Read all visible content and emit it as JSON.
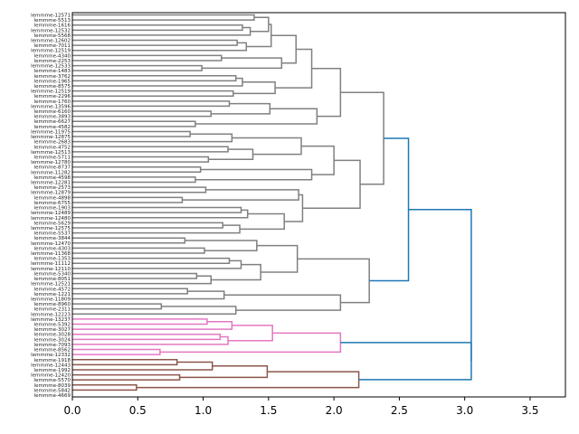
{
  "chart_data": {
    "type": "dendrogram",
    "orientation": "horizontal",
    "title": "",
    "xlabel": "",
    "ylabel": "",
    "xlim": [
      0,
      3.77
    ],
    "xticks": [
      0.0,
      0.5,
      1.0,
      1.5,
      2.0,
      2.5,
      3.0,
      3.5
    ],
    "xtick_labels": [
      "0.0",
      "0.5",
      "1.0",
      "1.5",
      "2.0",
      "2.5",
      "3.0",
      "3.5"
    ],
    "grid": false,
    "leaf_labels": [
      "lemmme-12571",
      "lemmme-5513",
      "lemmme-1616",
      "lemmme-12532",
      "lemmme-5568",
      "lemmme-12602",
      "lemmme-7011",
      "lemmme-12519",
      "lemmme-4340",
      "lemmme-2253",
      "lemmme-12533",
      "lemmme-1483",
      "lemmme-3762",
      "lemmme-1965",
      "lemmme-8575",
      "lemmme-12519",
      "lemmme-2296",
      "lemmme-1760",
      "lemmme-13596",
      "lemmme-6160",
      "lemmme-3893",
      "lemmme-6627",
      "lemmme-4582",
      "lemmme-11975",
      "lemmme-12875",
      "lemmme-2683",
      "lemmme-4752",
      "lemmme-12513",
      "lemmme-5711",
      "lemmme-12780",
      "lemmme-8737",
      "lemmme-11282",
      "lemmme-4598",
      "lemmme-12281",
      "lemmme-2573",
      "lemmme-12879",
      "lemmme-4898",
      "lemmme-6755",
      "lemmme-1903",
      "lemmme-12489",
      "lemmme-12480",
      "lemmme-5629",
      "lemmme-12575",
      "lemmme-5537",
      "lemmme-3844",
      "lemmme-12470",
      "lemmme-4303",
      "lemmme-11368",
      "lemmme-1353",
      "lemmme-11112",
      "lemmme-12110",
      "lemmme-5340",
      "lemmme-8051",
      "lemmme-12521",
      "lemmme-4572",
      "lemmme-1221",
      "lemmme-11809",
      "lemmme-8960",
      "lemmme-2311",
      "lemmme-12223",
      "lemmme-13237",
      "lemmme-5392",
      "lemmme-3027",
      "lemmme-3028",
      "lemmme-3024",
      "lemmme-7093",
      "lemmme-8562",
      "lemmme-12332",
      "lemmme-1918",
      "lemmme-12443",
      "lemmme-1992",
      "lemmme-12420",
      "lemmme-5570",
      "lemmme-8039",
      "lemmme-5842",
      "lemmme-4669"
    ],
    "merges": [
      {
        "left": 0,
        "right": 1,
        "height": 1.39,
        "color": "gray"
      },
      {
        "left": 2,
        "right": 3,
        "height": 1.3,
        "color": "gray"
      },
      {
        "left": "m1",
        "right": 4,
        "height": 1.36,
        "color": "gray"
      },
      {
        "left": "m0",
        "right": "m2",
        "height": 1.5,
        "color": "gray"
      },
      {
        "left": 5,
        "right": 6,
        "height": 1.26,
        "color": "gray"
      },
      {
        "left": "m4",
        "right": 7,
        "height": 1.33,
        "color": "gray"
      },
      {
        "left": "m3",
        "right": "m5",
        "height": 1.52,
        "color": "gray"
      },
      {
        "left": 8,
        "right": 9,
        "height": 1.14,
        "color": "gray"
      },
      {
        "left": 10,
        "right": 11,
        "height": 0.99,
        "color": "gray"
      },
      {
        "left": "m7",
        "right": "m8",
        "height": 1.6,
        "color": "gray"
      },
      {
        "left": "m6",
        "right": "m9",
        "height": 1.71,
        "color": "gray"
      },
      {
        "left": 12,
        "right": 13,
        "height": 1.25,
        "color": "gray"
      },
      {
        "left": "m11",
        "right": 14,
        "height": 1.3,
        "color": "gray"
      },
      {
        "left": 15,
        "right": 16,
        "height": 1.23,
        "color": "gray"
      },
      {
        "left": "m12",
        "right": "m13",
        "height": 1.55,
        "color": "gray"
      },
      {
        "left": "m10",
        "right": "m14",
        "height": 1.83,
        "color": "gray"
      },
      {
        "left": 17,
        "right": 18,
        "height": 1.2,
        "color": "gray"
      },
      {
        "left": 19,
        "right": 20,
        "height": 1.06,
        "color": "gray"
      },
      {
        "left": "m16",
        "right": "m17",
        "height": 1.51,
        "color": "gray"
      },
      {
        "left": 21,
        "right": 22,
        "height": 0.94,
        "color": "gray"
      },
      {
        "left": "m18",
        "right": "m19",
        "height": 1.87,
        "color": "gray"
      },
      {
        "left": "m15",
        "right": "m20",
        "height": 2.05,
        "color": "gray"
      },
      {
        "left": 23,
        "right": 24,
        "height": 0.9,
        "color": "gray"
      },
      {
        "left": "m22",
        "right": 25,
        "height": 1.22,
        "color": "gray"
      },
      {
        "left": 26,
        "right": 27,
        "height": 1.19,
        "color": "gray"
      },
      {
        "left": 28,
        "right": 29,
        "height": 1.04,
        "color": "gray"
      },
      {
        "left": "m24",
        "right": "m25",
        "height": 1.38,
        "color": "gray"
      },
      {
        "left": "m23",
        "right": "m26",
        "height": 1.75,
        "color": "gray"
      },
      {
        "left": 30,
        "right": 31,
        "height": 0.98,
        "color": "gray"
      },
      {
        "left": 32,
        "right": 33,
        "height": 0.94,
        "color": "gray"
      },
      {
        "left": "m28",
        "right": "m29",
        "height": 1.83,
        "color": "gray"
      },
      {
        "left": "m27",
        "right": "m30",
        "height": 2.0,
        "color": "gray"
      },
      {
        "left": 34,
        "right": 35,
        "height": 1.02,
        "color": "gray"
      },
      {
        "left": 36,
        "right": 37,
        "height": 0.84,
        "color": "gray"
      },
      {
        "left": "m32",
        "right": "m33",
        "height": 1.73,
        "color": "gray"
      },
      {
        "left": 38,
        "right": 39,
        "height": 1.29,
        "color": "gray"
      },
      {
        "left": "m35",
        "right": 40,
        "height": 1.34,
        "color": "gray"
      },
      {
        "left": 41,
        "right": 42,
        "height": 1.15,
        "color": "gray"
      },
      {
        "left": "m37",
        "right": 43,
        "height": 1.28,
        "color": "gray"
      },
      {
        "left": "m36",
        "right": "m38",
        "height": 1.62,
        "color": "gray"
      },
      {
        "left": "m34",
        "right": "m39",
        "height": 1.76,
        "color": "gray"
      },
      {
        "left": "m31",
        "right": "m40",
        "height": 2.2,
        "color": "gray"
      },
      {
        "left": "m21",
        "right": "m41",
        "height": 2.38,
        "color": "gray"
      },
      {
        "left": 44,
        "right": 45,
        "height": 0.86,
        "color": "gray"
      },
      {
        "left": 46,
        "right": 47,
        "height": 1.01,
        "color": "gray"
      },
      {
        "left": "m43",
        "right": "m44",
        "height": 1.41,
        "color": "gray"
      },
      {
        "left": 48,
        "right": 49,
        "height": 1.2,
        "color": "gray"
      },
      {
        "left": "m46",
        "right": 50,
        "height": 1.29,
        "color": "gray"
      },
      {
        "left": 51,
        "right": 52,
        "height": 0.95,
        "color": "gray"
      },
      {
        "left": "m48",
        "right": 53,
        "height": 1.06,
        "color": "gray"
      },
      {
        "left": "m47",
        "right": "m49",
        "height": 1.44,
        "color": "gray"
      },
      {
        "left": "m45",
        "right": "m50",
        "height": 1.72,
        "color": "gray"
      },
      {
        "left": 54,
        "right": 55,
        "height": 0.88,
        "color": "gray"
      },
      {
        "left": "m52",
        "right": 56,
        "height": 1.16,
        "color": "gray"
      },
      {
        "left": 57,
        "right": 58,
        "height": 0.68,
        "color": "gray"
      },
      {
        "left": "m54",
        "right": 59,
        "height": 1.25,
        "color": "gray"
      },
      {
        "left": "m53",
        "right": "m55",
        "height": 2.05,
        "color": "gray"
      },
      {
        "left": "m51",
        "right": "m56",
        "height": 2.27,
        "color": "gray"
      },
      {
        "left": "m42",
        "right": "m57",
        "height": 2.57,
        "color": "blue"
      },
      {
        "left": 60,
        "right": 61,
        "height": 1.03,
        "color": "pink"
      },
      {
        "left": "m59",
        "right": 62,
        "height": 1.22,
        "color": "pink"
      },
      {
        "left": 63,
        "right": 64,
        "height": 1.13,
        "color": "pink"
      },
      {
        "left": "m61",
        "right": 65,
        "height": 1.19,
        "color": "pink"
      },
      {
        "left": "m60",
        "right": "m62",
        "height": 1.53,
        "color": "pink"
      },
      {
        "left": 66,
        "right": 67,
        "height": 0.67,
        "color": "pink"
      },
      {
        "left": "m63",
        "right": "m64",
        "height": 2.05,
        "color": "pink"
      },
      {
        "left": 68,
        "right": 69,
        "height": 0.8,
        "color": "brown"
      },
      {
        "left": "m66",
        "right": 70,
        "height": 1.07,
        "color": "brown"
      },
      {
        "left": 71,
        "right": 72,
        "height": 0.82,
        "color": "brown"
      },
      {
        "left": "m67",
        "right": "m68",
        "height": 1.49,
        "color": "brown"
      },
      {
        "left": 73,
        "right": 74,
        "height": 0.49,
        "color": "brown"
      },
      {
        "left": "m69",
        "right": "m70",
        "height": 2.19,
        "color": "brown"
      },
      {
        "left": "m65",
        "right": "m71",
        "height": 3.05,
        "color": "blue"
      },
      {
        "left": "m58",
        "right": "m72",
        "height": 3.05,
        "color": "blue"
      }
    ],
    "colors": {
      "gray": "#808080",
      "blue": "#1f77b4",
      "pink": "#e377c2",
      "brown": "#8c564b",
      "purple": "#9467bd",
      "red": "#d62728",
      "green": "#2ca02c",
      "orange": "#ff7f0e"
    }
  }
}
